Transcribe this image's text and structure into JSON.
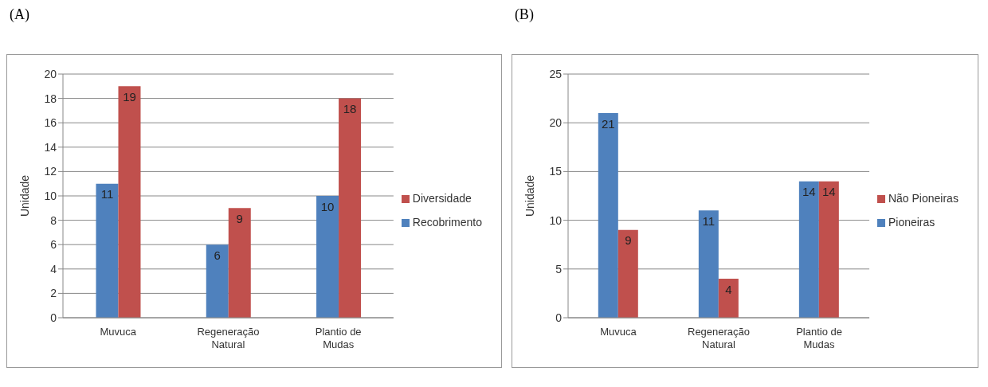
{
  "chart_data": [
    {
      "type": "bar",
      "title": "(A)",
      "ylabel": "Unidade",
      "categories": [
        "Muvuca",
        "Regeneração Natural",
        "Plantio de Mudas"
      ],
      "series": [
        {
          "name": "Recobrimento",
          "color": "#4f81bd",
          "values": [
            11,
            6,
            10
          ]
        },
        {
          "name": "Diversidade",
          "color": "#c0504d",
          "values": [
            19,
            9,
            18
          ]
        }
      ],
      "ylim": [
        0,
        20
      ],
      "yticks": [
        0,
        2,
        4,
        6,
        8,
        10,
        12,
        14,
        16,
        18,
        20
      ],
      "grid": "y",
      "legend": "right",
      "data_labels": true
    },
    {
      "type": "bar",
      "title": "(B)",
      "ylabel": "Unidade",
      "categories": [
        "Muvuca",
        "Regeneração Natural",
        "Plantio de Mudas"
      ],
      "series": [
        {
          "name": "Pioneiras",
          "color": "#4f81bd",
          "values": [
            21,
            11,
            14
          ]
        },
        {
          "name": "Não Pioneiras",
          "color": "#c0504d",
          "values": [
            9,
            4,
            14
          ]
        }
      ],
      "ylim": [
        0,
        25
      ],
      "yticks": [
        0,
        5,
        10,
        15,
        20,
        25
      ],
      "grid": "y",
      "legend": "right",
      "data_labels": true
    }
  ]
}
